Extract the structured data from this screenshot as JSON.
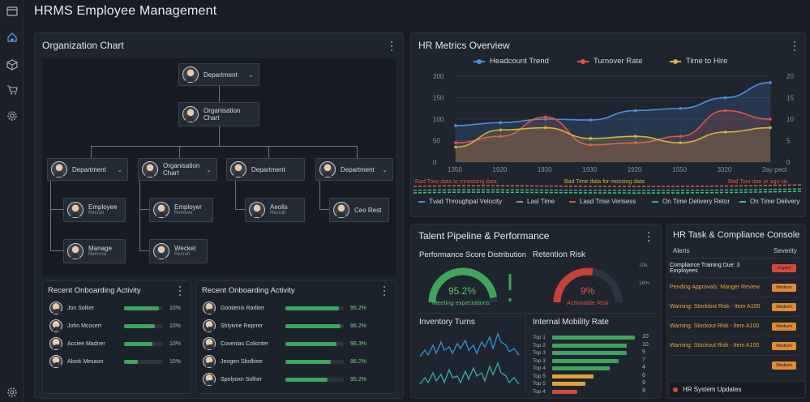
{
  "app": {
    "title": "HRMS Employee Management"
  },
  "sidebar": {
    "icons": [
      "menu-icon",
      "home-icon",
      "box-icon",
      "cart-icon",
      "gear-icon",
      "settings-icon"
    ]
  },
  "org_chart": {
    "title": "Organization Chart",
    "root": {
      "label": "Department"
    },
    "level2": {
      "label": "Organisation\nChart"
    },
    "level3": [
      {
        "label": "Department"
      },
      {
        "label": "Organisation\nChart"
      },
      {
        "label": "Department"
      },
      {
        "label": "Department"
      }
    ],
    "leaves": [
      {
        "label": "Employee",
        "sub": "Recruit"
      },
      {
        "label": "Employer",
        "sub": "Remove"
      },
      {
        "label": "Aeolis",
        "sub": "Recruit"
      },
      {
        "label": "Ceo Rest",
        "sub": ""
      },
      {
        "label": "Manage",
        "sub": "Remove"
      },
      {
        "label": "Wecket",
        "sub": "Recruit"
      }
    ]
  },
  "onboarding_left": {
    "title": "Recent Onboarding Activity",
    "rows": [
      {
        "name": "Jon Solker",
        "pct": "10%",
        "fill": 0.9
      },
      {
        "name": "John Mcocert",
        "pct": "10%",
        "fill": 0.8
      },
      {
        "name": "Acciee Madner",
        "pct": "10%",
        "fill": 0.72
      },
      {
        "name": "Alook Mesaon",
        "pct": "10%",
        "fill": 0.35
      }
    ]
  },
  "onboarding_right": {
    "title": "Recent Onboarding Activity",
    "rows": [
      {
        "name": "Gootienix Rarlker",
        "pct": "95.2%",
        "fill": 0.92
      },
      {
        "name": "Shlyivne Reprrer",
        "pct": "96.2%",
        "fill": 0.95
      },
      {
        "name": "Covenias Colionter",
        "pct": "96.3%",
        "fill": 0.88
      },
      {
        "name": "Jeogen Sbolkiee",
        "pct": "96.2%",
        "fill": 0.78
      },
      {
        "name": "Spolyoxn Solher",
        "pct": "95.2%",
        "fill": 0.72
      }
    ]
  },
  "hr_metrics": {
    "title": "HR Metrics Overview",
    "legend": [
      {
        "name": "Headcount Trend",
        "color": "#4a8fe0"
      },
      {
        "name": "Turnover Rate",
        "color": "#e0534a"
      },
      {
        "name": "Time to Hire",
        "color": "#d6b13a"
      }
    ],
    "y_left_ticks": [
      "200",
      "150",
      "100",
      "50",
      "0"
    ],
    "y_right_ticks": [
      "20",
      "15",
      "10",
      "5",
      "0"
    ],
    "x_ticks": [
      "1350",
      "1920",
      "1930",
      "1930",
      "1920",
      "1550",
      "3320",
      "2ay pect"
    ],
    "notes": [
      "Rad Tooc data to rnnossing data",
      "Bad Time data for mossing data",
      "Bad Toor dae or ago sic"
    ],
    "bottom_legend": [
      {
        "name": "Tvad Throughpal Velocity",
        "color": "#4a8fe0"
      },
      {
        "name": "Lasl Time",
        "color": "#8d95a0"
      },
      {
        "name": "Lasd Trise Verisess",
        "color": "#e0534a"
      },
      {
        "name": "On Time Delivery Retor",
        "color": "#2fb58a"
      },
      {
        "name": "On Time Delivery",
        "color": "#3ec478"
      }
    ],
    "chart_data": {
      "type": "area",
      "x": [
        "1350",
        "1920",
        "1930",
        "1930",
        "1920",
        "1550",
        "3320",
        "2ay pect"
      ],
      "ylim": [
        0,
        200
      ],
      "y2lim": [
        0,
        20
      ],
      "series": [
        {
          "name": "Headcount Trend",
          "values": [
            85,
            92,
            100,
            98,
            120,
            125,
            150,
            185
          ]
        },
        {
          "name": "Turnover Rate",
          "values": [
            45,
            60,
            105,
            40,
            45,
            60,
            120,
            100
          ]
        },
        {
          "name": "Time to Hire",
          "values": [
            35,
            75,
            80,
            55,
            60,
            45,
            70,
            80
          ]
        }
      ]
    }
  },
  "talent": {
    "title": "Talent Pipeline & Performance",
    "perf_title": "Performance Score Distribution",
    "perf_value": "95.2%",
    "perf_caption": "Meeting expectations",
    "perf_fill": 0.95,
    "risk_title": "Retention Risk",
    "risk_value": "9%",
    "risk_caption": "Actionable Risk",
    "risk_fill": 0.55,
    "risk_ticks": [
      "10k",
      "16%"
    ],
    "inventory_title": "Inventory Turns",
    "mobility_title": "Internal Mobility Rate",
    "mobility": [
      {
        "label": "Top 1",
        "value": 10,
        "color": "#3fa55a"
      },
      {
        "label": "Top 2",
        "value": 9,
        "color": "#3fa55a"
      },
      {
        "label": "Top 3",
        "value": 9,
        "color": "#3fa55a"
      },
      {
        "label": "Top 3",
        "value": 8,
        "color": "#3fa55a"
      },
      {
        "label": "Top 4",
        "value": 7,
        "color": "#3fa55a"
      },
      {
        "label": "Top 5",
        "value": 5,
        "color": "#e0a23a"
      },
      {
        "label": "Top 5",
        "value": 4,
        "color": "#e0a23a"
      },
      {
        "label": "Top 4",
        "value": 3,
        "color": "#d14a3f"
      }
    ],
    "mobility_ticks": [
      "10",
      "10",
      "9",
      "7",
      "4",
      "6",
      "9",
      "9"
    ]
  },
  "tasks": {
    "title": "HR Task & Compliance Console",
    "col_alerts": "Alerts",
    "col_severity": "Severity",
    "rows": [
      {
        "text": "Compliance Training Due: 3 Employees",
        "severity": "Urgent",
        "color": "#d9473c",
        "text_color": "#e6ebf2"
      },
      {
        "text": "Pending Approvals: Manger Review",
        "severity": "Medium",
        "color": "#e28a34",
        "text_color": "#f0a33c"
      },
      {
        "text": "Warning: Stocklost Risk - Item A100",
        "severity": "Medium",
        "color": "#e28a34",
        "text_color": "#f0a33c"
      },
      {
        "text": "Warning: Stockout Risk - Item A100",
        "severity": "Medium",
        "color": "#e28a34",
        "text_color": "#f0a33c"
      },
      {
        "text": "Warning: Stockout Risk - Item A100",
        "severity": "Medium",
        "color": "#e28a34",
        "text_color": "#f0a33c"
      },
      {
        "text": "",
        "severity": "Medium",
        "color": "#e28a34",
        "text_color": "#f0a33c"
      }
    ],
    "status": "HR System Updates"
  }
}
